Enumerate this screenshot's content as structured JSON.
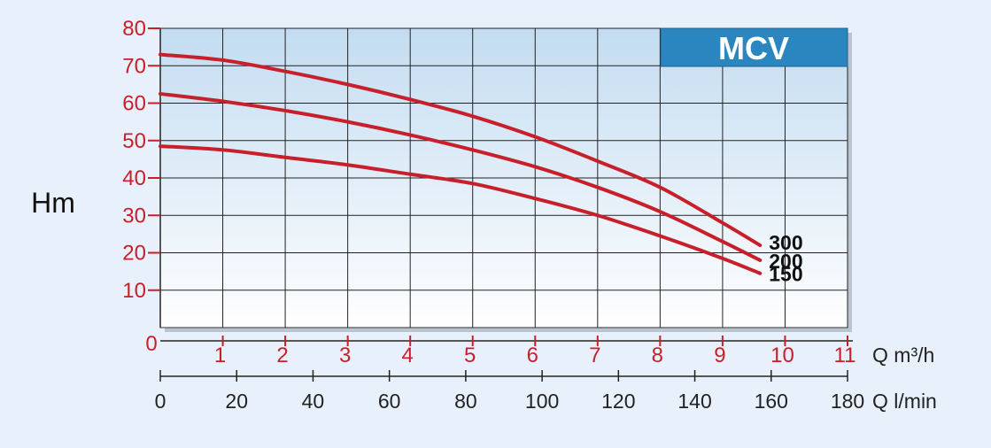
{
  "chart_data": {
    "type": "line",
    "ylabel": "Hm",
    "ylim": [
      0,
      80
    ],
    "y_ticks": [
      10,
      20,
      30,
      40,
      50,
      60,
      70,
      80
    ],
    "origin_label": "0",
    "x_axes": [
      {
        "unit": "Q m³/h",
        "range": [
          0,
          11
        ],
        "ticks": [
          1,
          2,
          3,
          4,
          5,
          6,
          7,
          8,
          9,
          10,
          11
        ],
        "color": "#c8202b"
      },
      {
        "unit": "Q l/min",
        "range": [
          0,
          180
        ],
        "ticks": [
          0,
          20,
          40,
          60,
          80,
          100,
          120,
          140,
          160,
          180
        ],
        "color": "#222222"
      }
    ],
    "legend_box": {
      "label": "MCV",
      "placement": "top-right",
      "color": "#2b86c0"
    },
    "grid": true,
    "series_color": "#c8202b",
    "series": [
      {
        "name": "300",
        "x": [
          0,
          1,
          2,
          3,
          4,
          5,
          6,
          7,
          8,
          9,
          9.6
        ],
        "y": [
          73,
          71.5,
          68.5,
          65,
          61,
          56.5,
          51,
          44.5,
          37.5,
          28,
          22
        ]
      },
      {
        "name": "200",
        "x": [
          0,
          1,
          2,
          3,
          4,
          5,
          6,
          7,
          8,
          9,
          9.6
        ],
        "y": [
          62.5,
          60.5,
          58,
          55,
          51.5,
          47.5,
          43,
          37.5,
          31,
          23,
          18
        ]
      },
      {
        "name": "150",
        "x": [
          0,
          1,
          2,
          3,
          4,
          5,
          6,
          7,
          8,
          9,
          9.6
        ],
        "y": [
          48.5,
          47.5,
          45.5,
          43.5,
          41,
          38.5,
          34.5,
          30,
          24.5,
          18.5,
          14.5
        ]
      }
    ]
  }
}
